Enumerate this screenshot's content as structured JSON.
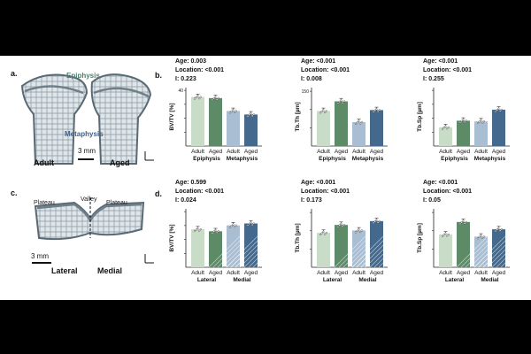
{
  "panels": {
    "a": "a.",
    "b": "b.",
    "c": "c.",
    "d": "d."
  },
  "panel_a": {
    "epiphysis": "Epiphysis",
    "metaphysis": "Metaphysis",
    "adult": "Adult",
    "aged": "Aged",
    "scale": "3 mm"
  },
  "panel_c": {
    "plateau1": "Plateau",
    "valley": "Valley",
    "plateau2": "Plateau",
    "scale": "3 mm",
    "lateral": "Lateral",
    "medial": "Medial"
  },
  "colors": {
    "c1": "#c9dcc7",
    "c2": "#5d8a67",
    "c3": "#a9bdd3",
    "c4": "#44698c",
    "ink": "#333333"
  },
  "chart_data": [
    {
      "id": "b1",
      "type": "bar",
      "stats": [
        "Age: 0.003",
        "Location: <0.001",
        "I: 0.223"
      ],
      "ylabel": "BV/TV [%]",
      "ylim": [
        0,
        50
      ],
      "ticks": [
        "",
        "",
        "",
        "40"
      ],
      "values": [
        42,
        41,
        30,
        27
      ],
      "categories": [
        "Adult",
        "Aged",
        "Adult",
        "Aged"
      ],
      "groups": [
        "Epiphysis",
        "Metaphysis"
      ]
    },
    {
      "id": "b2",
      "type": "bar",
      "stats": [
        "Age: <0.001",
        "Location: <0.001",
        "I: 0.008"
      ],
      "ylabel": "Tb.Th [µm]",
      "ylim": [
        0,
        200
      ],
      "ticks": [
        "",
        "",
        "150"
      ],
      "values": [
        120,
        153,
        82,
        123
      ],
      "categories": [
        "Adult",
        "Aged",
        "Adult",
        "Aged"
      ],
      "groups": [
        "Epiphysis",
        "Metaphysis"
      ]
    },
    {
      "id": "b3",
      "type": "bar",
      "stats": [
        "Age: <0.001",
        "Location: <0.001",
        "I: 0.255"
      ],
      "ylabel": "Tb.Sp [µm]",
      "ylim": [
        0,
        900
      ],
      "ticks": [
        "",
        "",
        "",
        ""
      ],
      "values": [
        290,
        390,
        380,
        560
      ],
      "categories": [
        "Adult",
        "Aged",
        "Adult",
        "Aged"
      ],
      "groups": [
        "Epiphysis",
        "Metaphysis"
      ]
    },
    {
      "id": "d1",
      "type": "bar",
      "stats": [
        "Age: 0.599",
        "Location: <0.001",
        "I: 0.024"
      ],
      "ylabel": "BV/TV [%]",
      "ylim": [
        0,
        60
      ],
      "ticks": [
        "",
        "",
        "",
        ""
      ],
      "values": [
        39,
        37,
        43,
        45
      ],
      "categories": [
        "Adult",
        "Aged",
        "Adult",
        "Aged"
      ],
      "groups": [
        "Lateral",
        "Medial"
      ]
    },
    {
      "id": "d2",
      "type": "bar",
      "stats": [
        "Age: <0.001",
        "Location: <0.001",
        "I: 0.173"
      ],
      "ylabel": "Tb.Th [µm]",
      "ylim": [
        0,
        200
      ],
      "ticks": [
        "",
        "",
        ""
      ],
      "values": [
        118,
        145,
        126,
        158
      ],
      "categories": [
        "Adult",
        "Aged",
        "Adult",
        "Aged"
      ],
      "groups": [
        "Lateral",
        "Medial"
      ]
    },
    {
      "id": "d3",
      "type": "bar",
      "stats": [
        "Age: <0.001",
        "Location: <0.001",
        "I: 0.05"
      ],
      "ylabel": "Tb.Sp [µm]",
      "ylim": [
        0,
        400
      ],
      "ticks": [
        "",
        "",
        ""
      ],
      "values": [
        225,
        310,
        210,
        260
      ],
      "categories": [
        "Adult",
        "Aged",
        "Adult",
        "Aged"
      ],
      "groups": [
        "Lateral",
        "Medial"
      ]
    }
  ]
}
